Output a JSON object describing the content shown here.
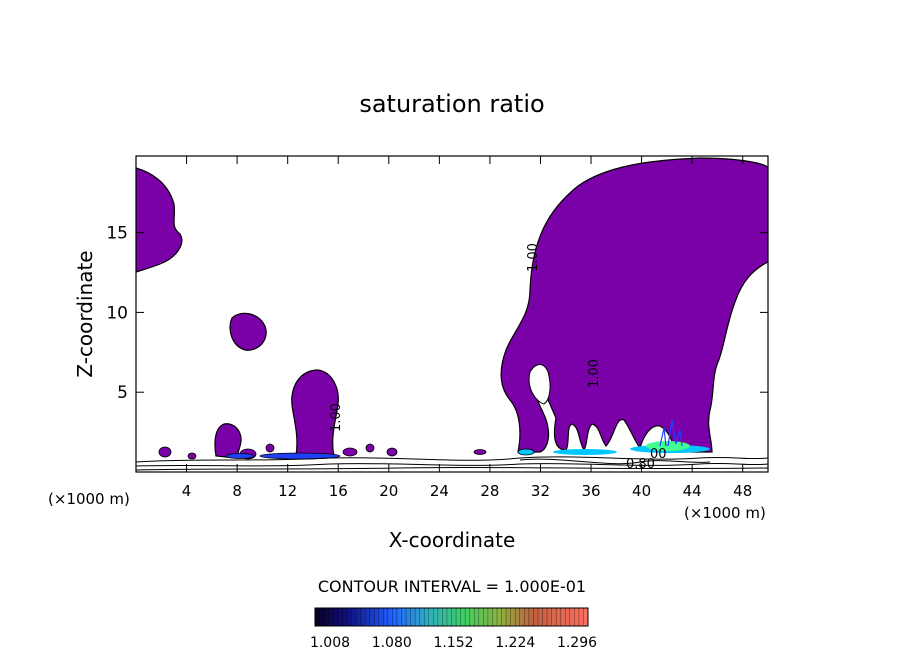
{
  "chart_data": {
    "type": "heatmap",
    "title": "saturation ratio",
    "xlabel": "X-coordinate",
    "ylabel": "Z-coordinate",
    "x_unit_left": "(×1000 m)",
    "x_unit_right": "(×1000 m)",
    "xlim": [
      0,
      50
    ],
    "ylim": [
      0,
      19.8
    ],
    "xticks": [
      "4",
      "8",
      "12",
      "16",
      "20",
      "24",
      "28",
      "32",
      "36",
      "40",
      "44",
      "48"
    ],
    "yticks": [
      "5",
      "10",
      "15"
    ],
    "contour_interval_text": "CONTOUR INTERVAL = 1.000E-01",
    "contour_labels": [
      "1.00",
      "1.00",
      "1.00",
      "0.80",
      "00"
    ],
    "colorbar": {
      "ticks": [
        "1.008",
        "1.080",
        "1.152",
        "1.224",
        "1.296"
      ],
      "min": 1.008,
      "max": 1.296
    },
    "regions": [
      {
        "name": "top-left",
        "value": 1.008
      },
      {
        "name": "blob-8km",
        "value": 1.008
      },
      {
        "name": "column-14km",
        "value": 1.008
      },
      {
        "name": "small-column-7km",
        "value": 1.008
      },
      {
        "name": "large-plume-30-50km",
        "value": 1.008
      },
      {
        "name": "hotspot-42km",
        "value": 1.15
      }
    ],
    "colors": {
      "fill": "#7a00a8",
      "outline": "#000000",
      "hot_cyan": "#00c8ff",
      "hot_green": "#40ff90",
      "hot_blue": "#2040ff"
    }
  }
}
